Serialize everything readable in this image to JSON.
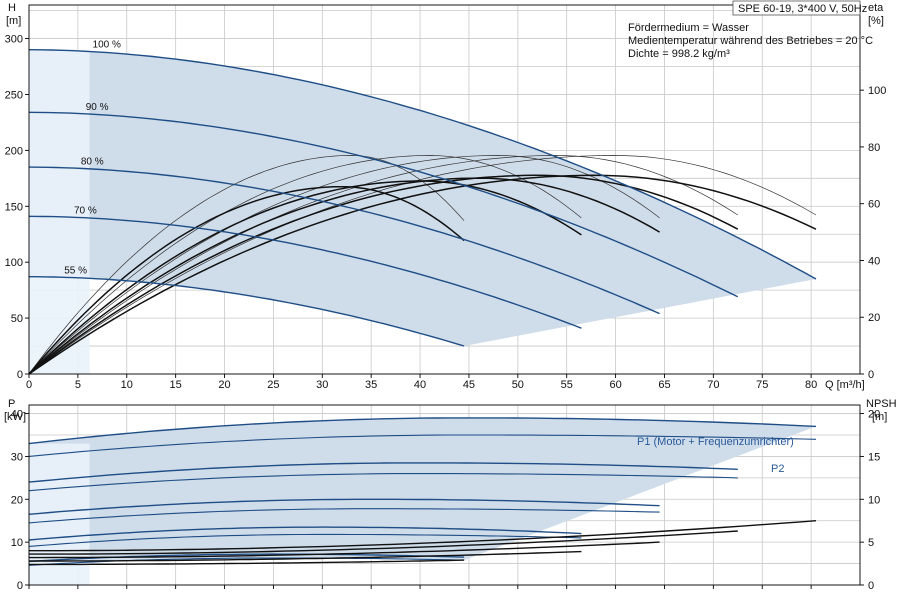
{
  "chart_data": [
    {
      "type": "line",
      "title": "SPE 60-19, 3*400 V, 50Hz",
      "info": [
        "Fördermedium = Wasser",
        "Medientemperatur während des Betriebes = 20 °C",
        "Dichte = 998.2 kg/m³"
      ],
      "xlabel": "Q [m³/h]",
      "ylabel": [
        "H",
        "[m]"
      ],
      "y2label": [
        "eta",
        "[%]"
      ],
      "xlim": [
        0,
        85
      ],
      "ylim": [
        0,
        330
      ],
      "y2lim": [
        0,
        130
      ],
      "xticks": [
        0,
        5,
        10,
        15,
        20,
        25,
        30,
        35,
        40,
        45,
        50,
        55,
        60,
        65,
        70,
        75,
        80
      ],
      "yticks": [
        0,
        50,
        100,
        150,
        200,
        250,
        300
      ],
      "y2ticks": [
        0,
        20,
        40,
        60,
        80,
        100
      ],
      "grid": true,
      "speeds": [
        {
          "label": "100 %",
          "H0": 290,
          "Qmax": 80.5,
          "Hend": 85
        },
        {
          "label": "90 %",
          "H0": 234,
          "Qmax": 72.5,
          "Hend": 69
        },
        {
          "label": "80 %",
          "H0": 185,
          "Qmax": 64.5,
          "Hend": 54
        },
        {
          "label": "70 %",
          "H0": 141,
          "Qmax": 56.5,
          "Hend": 41
        },
        {
          "label": "55 %",
          "H0": 87,
          "Qmax": 44.5,
          "Hend": 25
        }
      ],
      "efficiency_bold": [
        {
          "Qmax": 80.5,
          "peak_Q": 58,
          "peak": 70,
          "end": 51
        },
        {
          "Qmax": 72.5,
          "peak_Q": 52,
          "peak": 70,
          "end": 51
        },
        {
          "Qmax": 64.5,
          "peak_Q": 46,
          "peak": 69,
          "end": 50
        },
        {
          "Qmax": 56.5,
          "peak_Q": 40,
          "peak": 68,
          "end": 49
        },
        {
          "Qmax": 44.5,
          "peak_Q": 32,
          "peak": 66,
          "end": 47
        }
      ],
      "efficiency_thin": [
        {
          "Qmax": 80.5,
          "peak_Q": 60,
          "peak": 77,
          "end": 56
        },
        {
          "Qmax": 72.5,
          "peak_Q": 54,
          "peak": 77,
          "end": 56
        },
        {
          "Qmax": 64.5,
          "peak_Q": 48,
          "peak": 77,
          "end": 55
        },
        {
          "Qmax": 56.5,
          "peak_Q": 41,
          "peak": 77,
          "end": 55
        },
        {
          "Qmax": 44.5,
          "peak_Q": 33,
          "peak": 77,
          "end": 54
        }
      ]
    },
    {
      "type": "line",
      "ylabel": [
        "P",
        "[kW]"
      ],
      "y2label": [
        "NPSH",
        "[m]"
      ],
      "xlim": [
        0,
        85
      ],
      "ylim": [
        0,
        42
      ],
      "y2lim": [
        0,
        21
      ],
      "yticks": [
        0,
        10,
        20,
        30,
        40
      ],
      "y2ticks": [
        0,
        5,
        10,
        15,
        20
      ],
      "grid": true,
      "annotations": [
        "P1 (Motor + Frequenzumrichter)",
        "P2"
      ],
      "power_p1": [
        {
          "start": 33,
          "peak_Q": 45,
          "peak": 39,
          "Qmax": 80.5,
          "end": 37
        },
        {
          "start": 24,
          "peak_Q": 40,
          "peak": 28.5,
          "Qmax": 72.5,
          "end": 27
        },
        {
          "start": 16.5,
          "peak_Q": 35,
          "peak": 20,
          "Qmax": 64.5,
          "end": 18.5
        },
        {
          "start": 10.5,
          "peak_Q": 30,
          "peak": 13.5,
          "Qmax": 56.5,
          "end": 12
        },
        {
          "start": 5.5,
          "peak_Q": 25,
          "peak": 7.2,
          "Qmax": 44.5,
          "end": 6.5
        }
      ],
      "power_p2": [
        {
          "start": 30,
          "peak_Q": 45,
          "peak": 35,
          "Qmax": 80.5,
          "end": 34
        },
        {
          "start": 22,
          "peak_Q": 40,
          "peak": 26,
          "Qmax": 72.5,
          "end": 25
        },
        {
          "start": 14.5,
          "peak_Q": 35,
          "peak": 17.8,
          "Qmax": 64.5,
          "end": 17
        },
        {
          "start": 9,
          "peak_Q": 30,
          "peak": 11.8,
          "Qmax": 56.5,
          "end": 11
        },
        {
          "start": 4.6,
          "peak_Q": 25,
          "peak": 6.3,
          "Qmax": 44.5,
          "end": 5.8
        }
      ],
      "npsh": [
        {
          "start": 4.0,
          "Qmax": 80.5,
          "end": 7.5
        },
        {
          "start": 3.6,
          "Qmax": 72.5,
          "end": 6.3
        },
        {
          "start": 3.2,
          "Qmax": 64.5,
          "end": 5.0
        },
        {
          "start": 2.8,
          "Qmax": 56.5,
          "end": 3.9
        },
        {
          "start": 2.4,
          "Qmax": 44.5,
          "end": 2.9
        }
      ]
    }
  ]
}
